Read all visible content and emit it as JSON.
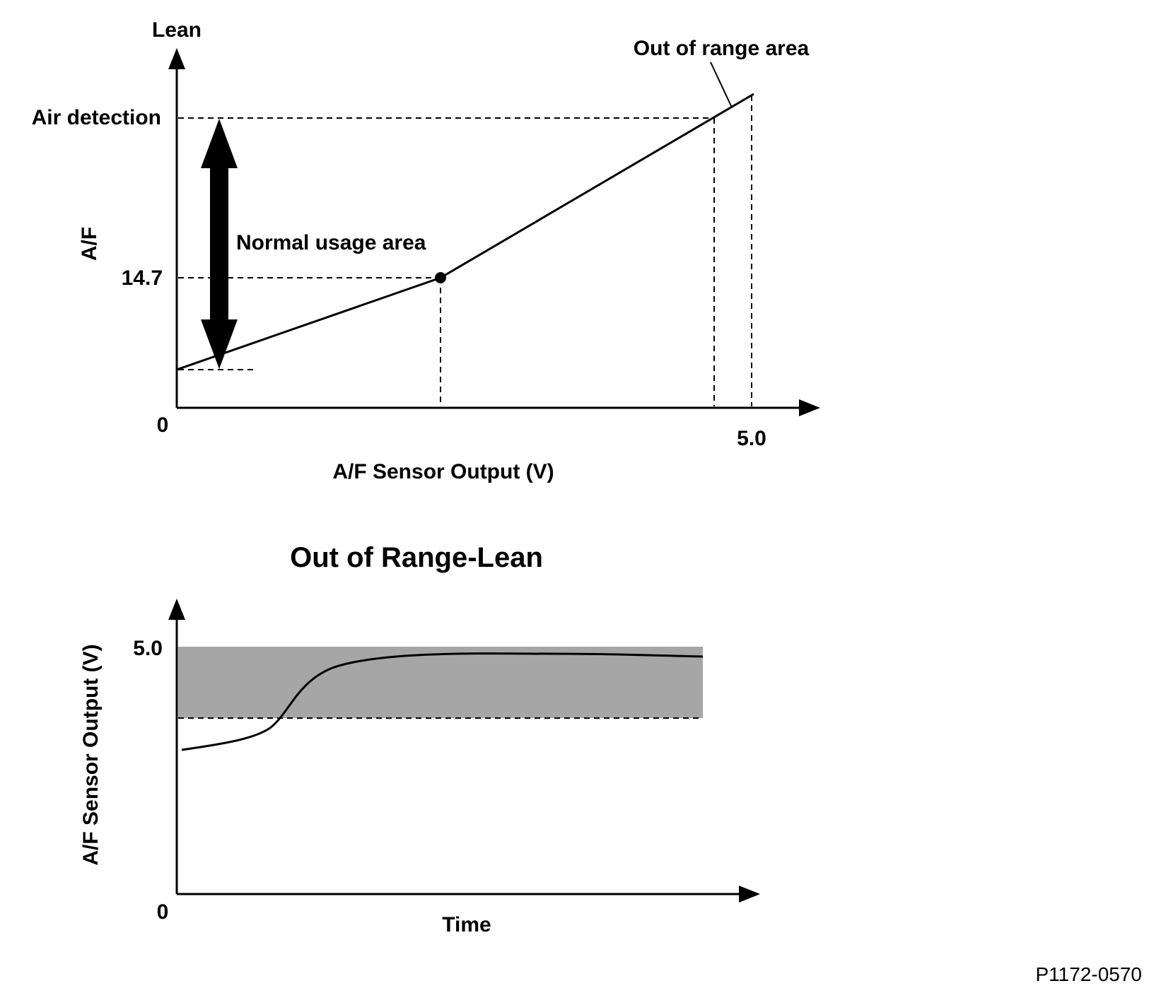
{
  "top_chart": {
    "y_top_label": "Lean",
    "y_axis_label": "A/F",
    "air_detection_label": "Air detection",
    "stoich_label": "14.7",
    "origin_label": "0",
    "x_max_label": "5.0",
    "x_axis_label": "A/F Sensor Output (V)",
    "normal_area_label": "Normal usage area",
    "out_of_range_label": "Out of range area"
  },
  "bottom_chart": {
    "title": "Out of Range-Lean",
    "y_max_label": "5.0",
    "origin_label": "0",
    "y_axis_label": "A/F Sensor Output (V)",
    "x_axis_label": "Time"
  },
  "figure_code": "P1172-0570",
  "colors": {
    "line": "#000000",
    "shaded_area": "#a6a6a6",
    "background": "#ffffff"
  }
}
